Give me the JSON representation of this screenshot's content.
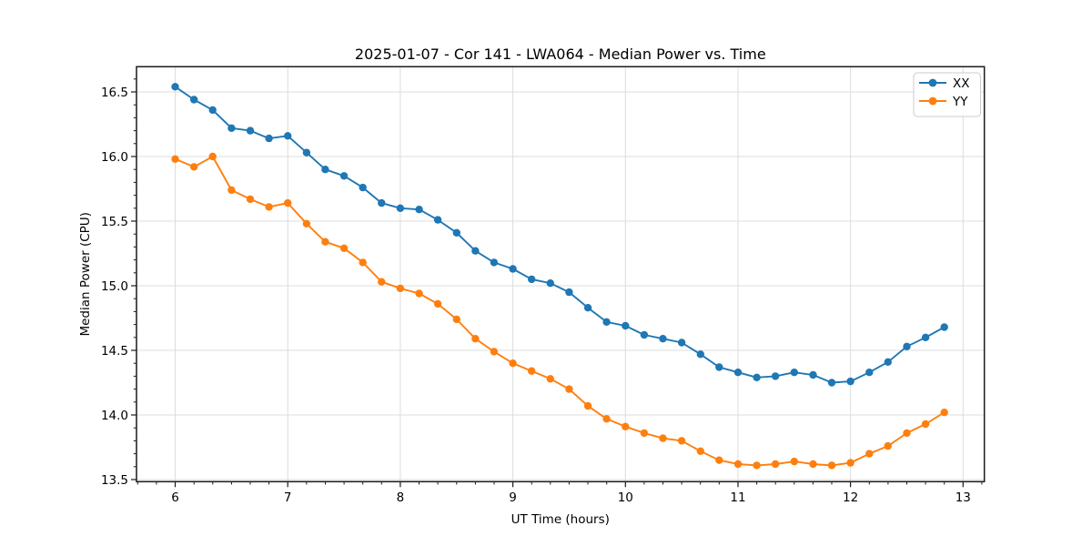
{
  "figure": {
    "background": "#ffffff",
    "grid_color": "#dcdcdc",
    "spine_color": "#1a1a1a"
  },
  "chart_data": {
    "type": "line",
    "title": "2025-01-07 - Cor 141 - LWA064 - Median Power vs. Time",
    "xlabel": "UT Time (hours)",
    "ylabel": "Median Power (CPU)",
    "xlim": [
      5.656,
      13.189
    ],
    "ylim": [
      13.484,
      16.695
    ],
    "x_ticks": [
      6,
      7,
      8,
      9,
      10,
      11,
      12,
      13
    ],
    "y_ticks": [
      13.5,
      14.0,
      14.5,
      15.0,
      15.5,
      16.0,
      16.5
    ],
    "x_minor_step": 0.1666667,
    "y_minor_step": 0.1,
    "grid": "major",
    "legend": {
      "position": "upper-right",
      "entries": [
        {
          "label": "XX",
          "color": "#1f77b4"
        },
        {
          "label": "YY",
          "color": "#ff7f0e"
        }
      ]
    },
    "x": [
      6.0,
      6.167,
      6.333,
      6.5,
      6.667,
      6.833,
      7.0,
      7.167,
      7.333,
      7.5,
      7.667,
      7.833,
      8.0,
      8.167,
      8.333,
      8.5,
      8.667,
      8.833,
      9.0,
      9.167,
      9.333,
      9.5,
      9.667,
      9.833,
      10.0,
      10.167,
      10.333,
      10.5,
      10.667,
      10.833,
      11.0,
      11.167,
      11.333,
      11.5,
      11.667,
      11.833,
      12.0,
      12.167,
      12.333,
      12.5,
      12.667,
      12.833
    ],
    "series": [
      {
        "name": "XX",
        "color": "#1f77b4",
        "values": [
          16.54,
          16.44,
          16.36,
          16.22,
          16.2,
          16.14,
          16.16,
          16.03,
          15.9,
          15.85,
          15.76,
          15.64,
          15.6,
          15.59,
          15.51,
          15.41,
          15.27,
          15.18,
          15.13,
          15.05,
          15.02,
          14.95,
          14.83,
          14.72,
          14.69,
          14.62,
          14.59,
          14.56,
          14.47,
          14.37,
          14.33,
          14.29,
          14.3,
          14.33,
          14.31,
          14.25,
          14.26,
          14.33,
          14.41,
          14.53,
          14.6,
          14.68
        ]
      },
      {
        "name": "YY",
        "color": "#ff7f0e",
        "values": [
          15.98,
          15.92,
          16.0,
          15.74,
          15.67,
          15.61,
          15.64,
          15.48,
          15.34,
          15.29,
          15.18,
          15.03,
          14.98,
          14.94,
          14.86,
          14.74,
          14.59,
          14.49,
          14.4,
          14.34,
          14.28,
          14.2,
          14.07,
          13.97,
          13.91,
          13.86,
          13.82,
          13.8,
          13.72,
          13.65,
          13.62,
          13.61,
          13.62,
          13.64,
          13.62,
          13.61,
          13.63,
          13.7,
          13.76,
          13.86,
          13.93,
          14.02
        ]
      }
    ]
  }
}
